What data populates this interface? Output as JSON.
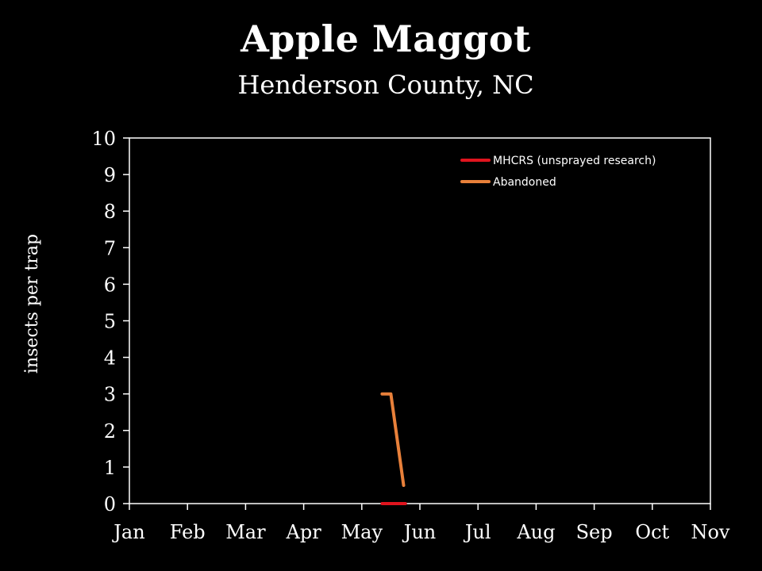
{
  "chart_data": {
    "type": "line",
    "title": "Apple Maggot",
    "subtitle": "Henderson County, NC",
    "xlabel": "",
    "ylabel": "insects per trap",
    "categories": [
      "Jan",
      "Feb",
      "Mar",
      "Apr",
      "May",
      "Jun",
      "Jul",
      "Aug",
      "Sep",
      "Oct",
      "Nov"
    ],
    "xlim": [
      0,
      10
    ],
    "ylim": [
      0,
      10
    ],
    "yticks": [
      0,
      1,
      2,
      3,
      4,
      5,
      6,
      7,
      8,
      9,
      10
    ],
    "grid": false,
    "legend_position": "top-right",
    "series": [
      {
        "name": "MHCRS (unsprayed research)",
        "color": "#e0141e",
        "points": [
          [
            4.35,
            0
          ],
          [
            4.45,
            0
          ],
          [
            4.75,
            0
          ]
        ]
      },
      {
        "name": "Abandoned",
        "color": "#e8803a",
        "points": [
          [
            4.35,
            3
          ],
          [
            4.5,
            3
          ],
          [
            4.72,
            0.5
          ]
        ]
      }
    ]
  }
}
